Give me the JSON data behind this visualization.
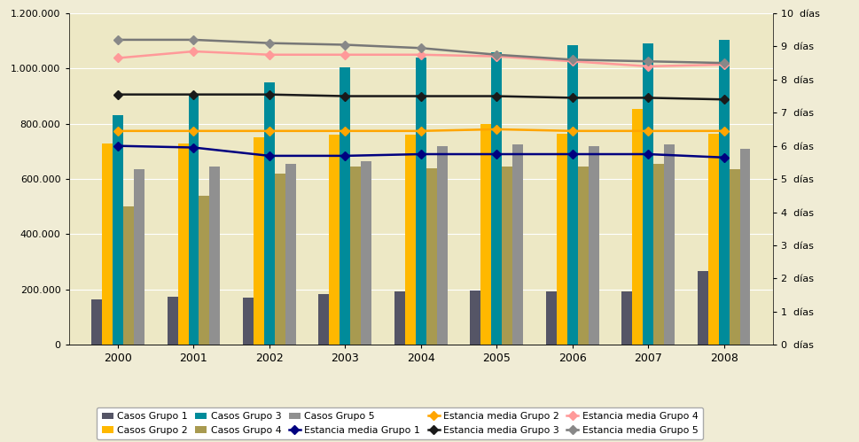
{
  "years": [
    2000,
    2001,
    2002,
    2003,
    2004,
    2005,
    2006,
    2007,
    2008
  ],
  "bars": {
    "Casos Grupo 1": [
      165000,
      175000,
      172000,
      182000,
      192000,
      195000,
      192000,
      193000,
      268000
    ],
    "Casos Grupo 2": [
      730000,
      730000,
      750000,
      760000,
      760000,
      800000,
      765000,
      855000,
      765000
    ],
    "Casos Grupo 3": [
      830000,
      905000,
      950000,
      1005000,
      1040000,
      1060000,
      1085000,
      1090000,
      1105000
    ],
    "Casos Grupo 4": [
      500000,
      540000,
      620000,
      645000,
      640000,
      645000,
      645000,
      655000,
      635000
    ],
    "Casos Grupo 5": [
      635000,
      645000,
      655000,
      665000,
      720000,
      725000,
      720000,
      725000,
      710000
    ]
  },
  "bar_colors": {
    "Casos Grupo 1": "#555566",
    "Casos Grupo 2": "#FFB800",
    "Casos Grupo 3": "#008B9A",
    "Casos Grupo 4": "#A89A50",
    "Casos Grupo 5": "#909090"
  },
  "lines": {
    "Estancia media Grupo 1": [
      6.0,
      5.95,
      5.7,
      5.7,
      5.75,
      5.75,
      5.75,
      5.75,
      5.65
    ],
    "Estancia media Grupo 2": [
      6.45,
      6.45,
      6.45,
      6.45,
      6.45,
      6.5,
      6.45,
      6.45,
      6.45
    ],
    "Estancia media Grupo 3": [
      7.55,
      7.55,
      7.55,
      7.5,
      7.5,
      7.5,
      7.45,
      7.45,
      7.4
    ],
    "Estancia media Grupo 4": [
      8.65,
      8.85,
      8.75,
      8.75,
      8.75,
      8.7,
      8.55,
      8.4,
      8.45
    ],
    "Estancia media Grupo 5": [
      9.2,
      9.2,
      9.1,
      9.05,
      8.95,
      8.75,
      8.6,
      8.55,
      8.5
    ]
  },
  "line_colors": {
    "Estancia media Grupo 1": "#000080",
    "Estancia media Grupo 2": "#FFA500",
    "Estancia media Grupo 3": "#1A1A1A",
    "Estancia media Grupo 4": "#FF9999",
    "Estancia media Grupo 5": "#777777"
  },
  "line_marker_colors": {
    "Estancia media Grupo 1": "#000080",
    "Estancia media Grupo 2": "#FFA500",
    "Estancia media Grupo 3": "#1A1A1A",
    "Estancia media Grupo 4": "#FF9999",
    "Estancia media Grupo 5": "#888888"
  },
  "ylim_left": [
    0,
    1200000
  ],
  "ylim_right": [
    0,
    10
  ],
  "yticks_left": [
    0,
    200000,
    400000,
    600000,
    800000,
    1000000,
    1200000
  ],
  "yticks_right": [
    0,
    1,
    2,
    3,
    4,
    5,
    6,
    7,
    8,
    9,
    10
  ],
  "background_color": "#EDE8C5",
  "plot_bg_color": "#EDE8C5"
}
